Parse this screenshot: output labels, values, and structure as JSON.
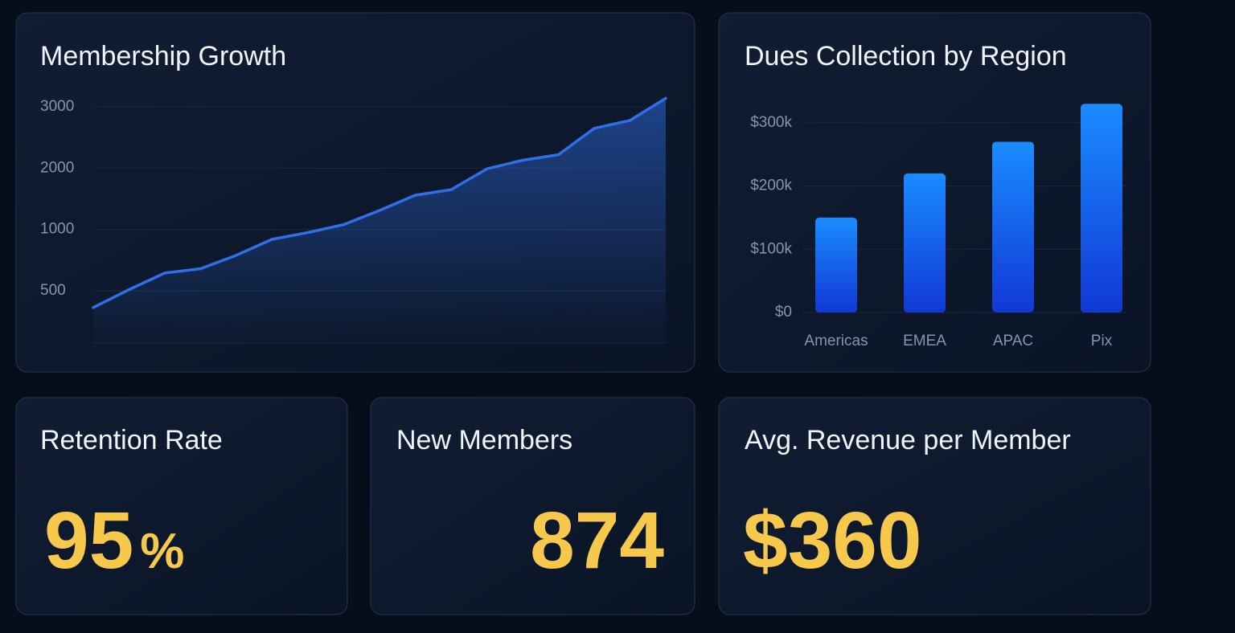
{
  "chart_data": [
    {
      "type": "line",
      "title": "Membership Growth",
      "values": [
        340,
        510,
        645,
        680,
        790,
        920,
        975,
        1080,
        1310,
        1560,
        1650,
        1990,
        2130,
        2220,
        2650,
        2780,
        3140
      ],
      "color": "#2f6fe8",
      "ylim": [
        0,
        3200
      ],
      "yticks": [
        500,
        1000,
        2000,
        3000
      ],
      "grid": true
    },
    {
      "type": "bar",
      "title": "Dues Collection by Region",
      "categories": [
        "Americas",
        "EMEA",
        "APAC",
        "Pix"
      ],
      "values": [
        150000,
        220000,
        270000,
        330000
      ],
      "color": "#1a8cff",
      "ylim": [
        0,
        350000
      ],
      "yticks": [
        {
          "value": 0,
          "label": "$0"
        },
        {
          "value": 100000,
          "label": "$100k"
        },
        {
          "value": 200000,
          "label": "$200k"
        },
        {
          "value": 300000,
          "label": "$300k"
        }
      ],
      "grid": true
    }
  ],
  "kpis": [
    {
      "title": "Retention Rate",
      "value": 95,
      "unit": "%"
    },
    {
      "title": "New Members",
      "value": 874
    },
    {
      "title": "Avg. Revenue per Member",
      "value": 360,
      "value_label": "$360"
    }
  ]
}
